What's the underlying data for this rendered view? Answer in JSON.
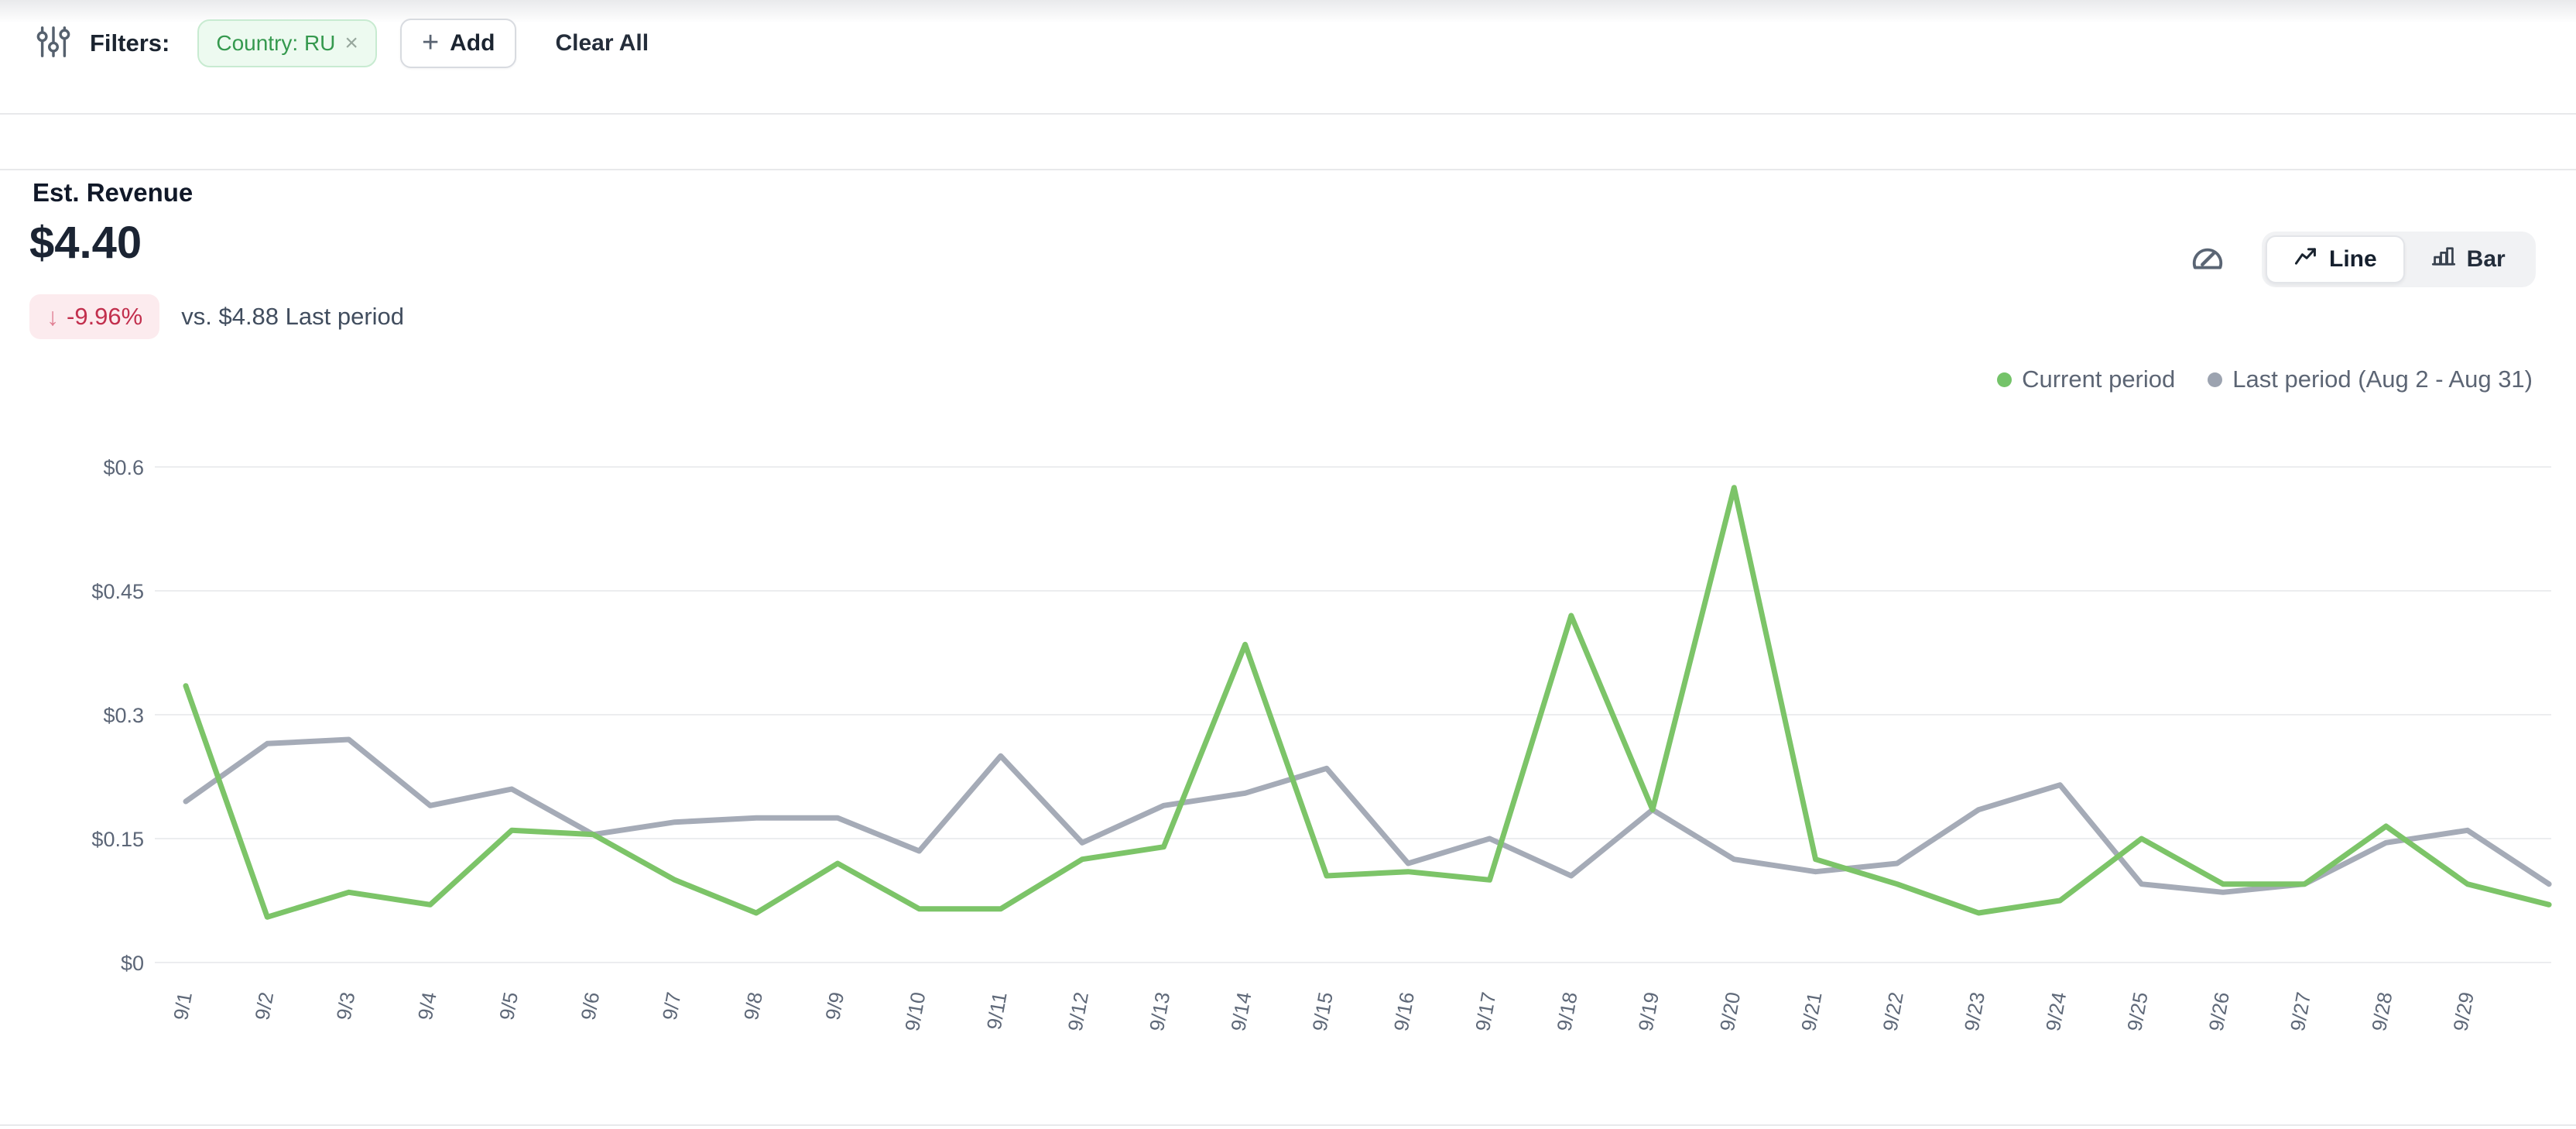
{
  "filter_bar": {
    "label": "Filters:",
    "chip": {
      "text": "Country: RU",
      "close": "×"
    },
    "add_plus": "+",
    "add_label": "Add",
    "clear_all": "Clear All"
  },
  "metric": {
    "title": "Est. Revenue",
    "value": "$4.40",
    "change_arrow": "↓",
    "change": "-9.96%",
    "comparison": "vs. $4.88 Last period"
  },
  "view_toggle": {
    "options": [
      {
        "label": "Line",
        "active": true
      },
      {
        "label": "Bar",
        "active": false
      }
    ]
  },
  "legend": {
    "items": [
      {
        "label": "Current period",
        "color": "#74C369"
      },
      {
        "label": "Last period (Aug 2 - Aug 31)",
        "color": "#9CA3B0"
      }
    ]
  },
  "icons": {
    "filter": "sliders-icon",
    "add": "plus-icon",
    "chip_remove": "close-icon",
    "badge_trend": "down-arrow-icon",
    "gauge": "gauge-icon",
    "line_view": "trend-line-icon",
    "bar_view": "bar-chart-icon",
    "legend_marker": "dot-icon"
  },
  "colors": {
    "current_period_line": "#7CC468",
    "last_period_line": "#A5ABB7",
    "chip_green": "#35994E",
    "badge_red": "#C22F4D",
    "grid": "#ECEDEF"
  },
  "chart_data": {
    "type": "line",
    "title": "Est. Revenue",
    "xlabel": "",
    "ylabel": "",
    "ylim": [
      0,
      0.6
    ],
    "grid": true,
    "legend_position": "top-right",
    "x_labels": [
      "9/1",
      "9/2",
      "9/3",
      "9/4",
      "9/5",
      "9/6",
      "9/7",
      "9/8",
      "9/9",
      "9/10",
      "9/11",
      "9/12",
      "9/13",
      "9/14",
      "9/15",
      "9/16",
      "9/17",
      "9/18",
      "9/19",
      "9/20",
      "9/21",
      "9/22",
      "9/23",
      "9/24",
      "9/25",
      "9/26",
      "9/27",
      "9/28",
      "9/29",
      ""
    ],
    "y_ticks": [
      {
        "label": "$0.6",
        "value": 0.6
      },
      {
        "label": "$0.45",
        "value": 0.45
      },
      {
        "label": "$0.3",
        "value": 0.3
      },
      {
        "label": "$0.15",
        "value": 0.15
      },
      {
        "label": "$0",
        "value": 0
      }
    ],
    "series": [
      {
        "name": "Current period",
        "color": "#7CC468",
        "values": [
          0.335,
          0.055,
          0.085,
          0.07,
          0.16,
          0.155,
          0.1,
          0.06,
          0.12,
          0.065,
          0.065,
          0.125,
          0.14,
          0.385,
          0.105,
          0.11,
          0.1,
          0.42,
          0.185,
          0.575,
          0.125,
          0.095,
          0.06,
          0.075,
          0.15,
          0.095,
          0.095,
          0.165,
          0.095,
          0.07
        ]
      },
      {
        "name": "Last period (Aug 2 - Aug 31)",
        "color": "#A5ABB7",
        "values": [
          0.195,
          0.265,
          0.27,
          0.19,
          0.21,
          0.155,
          0.17,
          0.175,
          0.175,
          0.135,
          0.25,
          0.145,
          0.19,
          0.205,
          0.235,
          0.12,
          0.15,
          0.105,
          0.185,
          0.125,
          0.11,
          0.12,
          0.185,
          0.215,
          0.095,
          0.085,
          0.095,
          0.145,
          0.16,
          0.095
        ]
      }
    ]
  }
}
